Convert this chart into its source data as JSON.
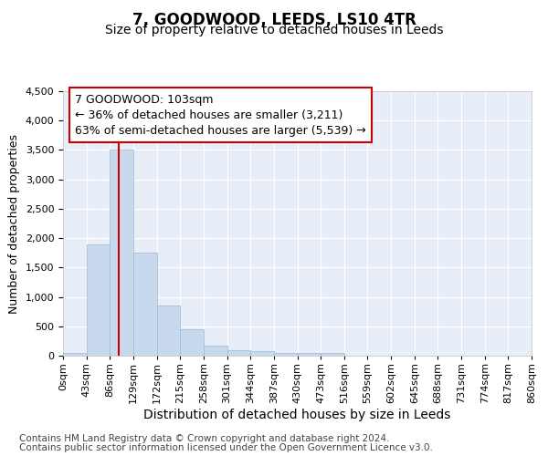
{
  "title": "7, GOODWOOD, LEEDS, LS10 4TR",
  "subtitle": "Size of property relative to detached houses in Leeds",
  "xlabel": "Distribution of detached houses by size in Leeds",
  "ylabel": "Number of detached properties",
  "bar_color": "#c8d9ee",
  "bar_edgecolor": "#9ab6d8",
  "vline_color": "#cc0000",
  "property_sqm": 103,
  "annotation_text": "7 GOODWOOD: 103sqm\n← 36% of detached houses are smaller (3,211)\n63% of semi-detached houses are larger (5,539) →",
  "annotation_box_edgecolor": "#cc0000",
  "annotation_box_facecolor": "white",
  "bin_edges": [
    0,
    43,
    86,
    129,
    172,
    215,
    258,
    301,
    344,
    387,
    430,
    473,
    516,
    559,
    602,
    645,
    688,
    731,
    774,
    817,
    860
  ],
  "bar_values": [
    50,
    1900,
    3500,
    1750,
    850,
    450,
    175,
    100,
    70,
    45,
    40,
    50,
    0,
    0,
    0,
    0,
    0,
    0,
    0,
    0
  ],
  "xtick_labels": [
    "0sqm",
    "43sqm",
    "86sqm",
    "129sqm",
    "172sqm",
    "215sqm",
    "258sqm",
    "301sqm",
    "344sqm",
    "387sqm",
    "430sqm",
    "473sqm",
    "516sqm",
    "559sqm",
    "602sqm",
    "645sqm",
    "688sqm",
    "731sqm",
    "774sqm",
    "817sqm",
    "860sqm"
  ],
  "ylim": [
    0,
    4500
  ],
  "yticks": [
    0,
    500,
    1000,
    1500,
    2000,
    2500,
    3000,
    3500,
    4000,
    4500
  ],
  "plot_bg_color": "#e8eef8",
  "grid_color": "#ffffff",
  "title_fontsize": 12,
  "subtitle_fontsize": 10,
  "ylabel_fontsize": 9,
  "xlabel_fontsize": 10,
  "tick_fontsize": 8,
  "annotation_fontsize": 9,
  "footer_fontsize": 7.5,
  "footer_line1": "Contains HM Land Registry data © Crown copyright and database right 2024.",
  "footer_line2": "Contains public sector information licensed under the Open Government Licence v3.0."
}
